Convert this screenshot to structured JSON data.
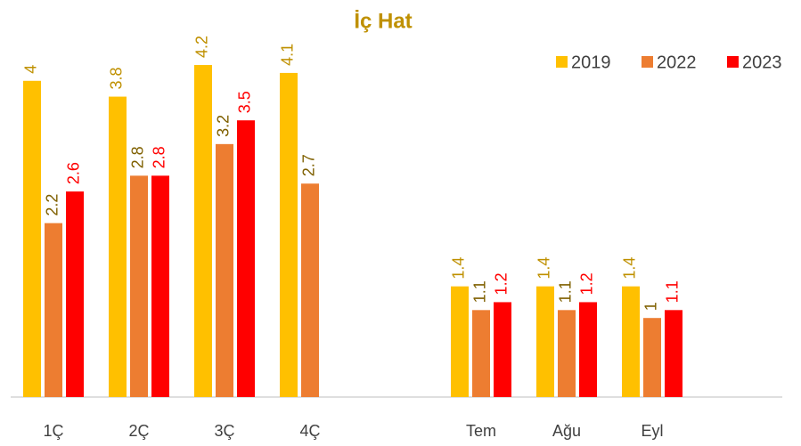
{
  "chart_data": {
    "type": "bar",
    "title": "İç Hat",
    "categories": [
      "1Ç",
      "2Ç",
      "3Ç",
      "4Ç",
      null,
      "Tem",
      "Ağu",
      "Eyl",
      null
    ],
    "series": [
      {
        "name": "2019",
        "color": "#ffc000",
        "label_color": "#bf9000",
        "values": [
          4.0,
          3.8,
          4.2,
          4.1,
          null,
          1.4,
          1.4,
          1.4,
          null
        ]
      },
      {
        "name": "2022",
        "color": "#ed7d31",
        "label_color": "#7f6000",
        "values": [
          2.2,
          2.8,
          3.2,
          2.7,
          null,
          1.1,
          1.1,
          1.0,
          null
        ]
      },
      {
        "name": "2023",
        "color": "#ff0000",
        "label_color": "#ff0000",
        "values": [
          2.6,
          2.8,
          3.5,
          null,
          null,
          1.2,
          1.2,
          1.1,
          null
        ]
      }
    ],
    "ylim": [
      0,
      5
    ],
    "legend": "top-right"
  }
}
